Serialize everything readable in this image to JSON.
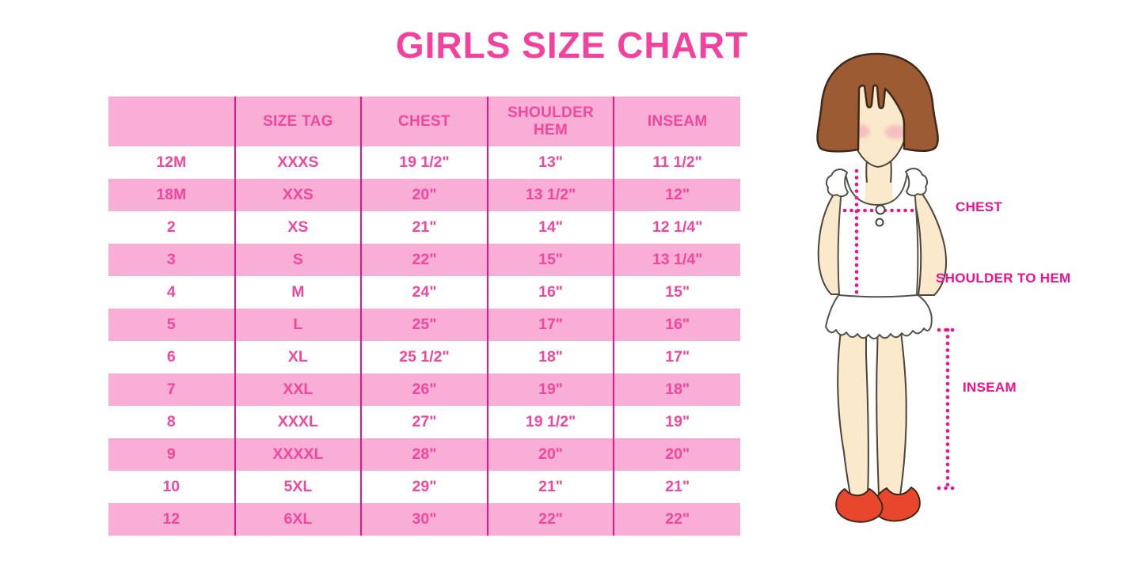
{
  "chart_data": {
    "type": "table",
    "title": "GIRLS SIZE CHART",
    "columns": [
      "",
      "SIZE TAG",
      "CHEST",
      "SHOULDER HEM",
      "INSEAM"
    ],
    "rows": [
      [
        "12M",
        "XXXS",
        "19 1/2\"",
        "13\"",
        "11 1/2\""
      ],
      [
        "18M",
        "XXS",
        "20\"",
        "13 1/2\"",
        "12\""
      ],
      [
        "2",
        "XS",
        "21\"",
        "14\"",
        "12 1/4\""
      ],
      [
        "3",
        "S",
        "22\"",
        "15\"",
        "13 1/4\""
      ],
      [
        "4",
        "M",
        "24\"",
        "16\"",
        "15\""
      ],
      [
        "5",
        "L",
        "25\"",
        "17\"",
        "16\""
      ],
      [
        "6",
        "XL",
        "25 1/2\"",
        "18\"",
        "17\""
      ],
      [
        "7",
        "XXL",
        "26\"",
        "19\"",
        "18\""
      ],
      [
        "8",
        "XXXL",
        "27\"",
        "19 1/2\"",
        "19\""
      ],
      [
        "9",
        "XXXXL",
        "28\"",
        "20\"",
        "20\""
      ],
      [
        "10",
        "5XL",
        "29\"",
        "21\"",
        "21\""
      ],
      [
        "12",
        "6XL",
        "30\"",
        "22\"",
        "22\""
      ]
    ],
    "row_striping": [
      "white",
      "pink"
    ],
    "grid": "vertical-dividers-only"
  },
  "figure": {
    "labels": {
      "chest": "CHEST",
      "shoulder_to_hem": "SHOULDER TO HEM",
      "inseam": "INSEAM"
    }
  },
  "colors": {
    "background": "#ffffff",
    "title_pink": "#f4419d",
    "cell_pink": "#f2479e",
    "row_pink": "#f9aed5",
    "line_magenta": "#e9148b",
    "label_magenta": "#ef108f",
    "dot_magenta": "#f2108c",
    "hair_brown": "#9c5b33",
    "hair_outline": "#3e2a1b",
    "skin": "#faeacb",
    "skin_outline": "#4a443c",
    "blush": "#f3a9be",
    "outline_gray": "#55504a",
    "shoe_red": "#e8472e"
  }
}
